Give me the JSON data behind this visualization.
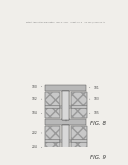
{
  "background_color": "#f0eeea",
  "header_text": "Patent Application Publication   May 3, 2011   Sheet 4 of 8    US 2011/0100000 A1",
  "fig8_label": "FIG. 8",
  "fig9_label": "FIG. 9",
  "cap_color": "#b8b8b8",
  "body_color": "#c8c8c8",
  "hatch_color": "#999999",
  "stem_color": "#d8d8d8",
  "white": "#ffffff",
  "edge_color": "#555555",
  "text_color": "#444444",
  "label_color": "#333333"
}
